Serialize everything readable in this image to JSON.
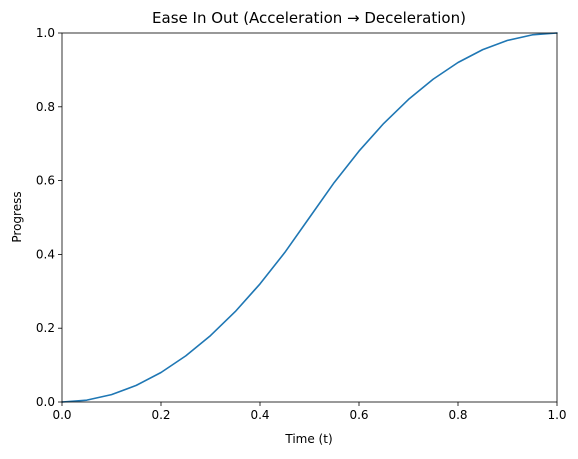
{
  "chart_data": {
    "type": "line",
    "title": "Ease In Out (Acceleration → Deceleration)",
    "xlabel": "Time (t)",
    "ylabel": "Progress",
    "xlim": [
      0.0,
      1.0
    ],
    "ylim": [
      0.0,
      1.0
    ],
    "xticks": [
      0.0,
      0.2,
      0.4,
      0.6,
      0.8,
      1.0
    ],
    "xtick_labels": [
      "0.0",
      "0.2",
      "0.4",
      "0.6",
      "0.8",
      "1.0"
    ],
    "yticks": [
      0.0,
      0.2,
      0.4,
      0.6,
      0.8,
      1.0
    ],
    "ytick_labels": [
      "0.0",
      "0.2",
      "0.4",
      "0.6",
      "0.8",
      "1.0"
    ],
    "grid": false,
    "legend": false,
    "series": [
      {
        "color": "#1f77b4",
        "x": [
          0.0,
          0.05,
          0.1,
          0.15,
          0.2,
          0.25,
          0.3,
          0.35,
          0.4,
          0.45,
          0.5,
          0.55,
          0.6,
          0.65,
          0.7,
          0.75,
          0.8,
          0.85,
          0.9,
          0.95,
          1.0
        ],
        "y": [
          0.0,
          0.005,
          0.02,
          0.045,
          0.08,
          0.125,
          0.18,
          0.245,
          0.32,
          0.405,
          0.5,
          0.595,
          0.68,
          0.755,
          0.82,
          0.875,
          0.92,
          0.955,
          0.98,
          0.995,
          1.0
        ]
      }
    ]
  }
}
